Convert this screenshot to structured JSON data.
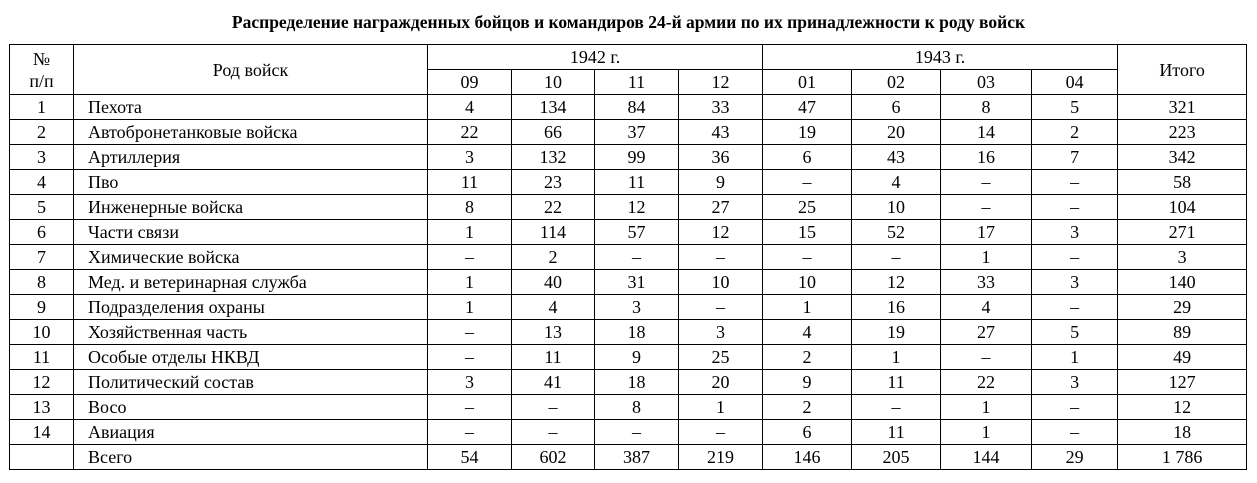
{
  "title": "Распределение награжденных бойцов и командиров 24-й армии по их принадлежности к роду войск",
  "header": {
    "num_line1": "№",
    "num_line2": "п/п",
    "branch": "Род войск",
    "year_1942": "1942 г.",
    "year_1943": "1943 г.",
    "months_1942": [
      "09",
      "10",
      "11",
      "12"
    ],
    "months_1943": [
      "01",
      "02",
      "03",
      "04"
    ],
    "total": "Итого"
  },
  "rows": [
    {
      "num": "1",
      "branch": "Пехота",
      "values": [
        "4",
        "134",
        "84",
        "33",
        "47",
        "6",
        "8",
        "5"
      ],
      "total": "321"
    },
    {
      "num": "2",
      "branch": "Автобронетанковые войска",
      "values": [
        "22",
        "66",
        "37",
        "43",
        "19",
        "20",
        "14",
        "2"
      ],
      "total": "223"
    },
    {
      "num": "3",
      "branch": "Артиллерия",
      "values": [
        "3",
        "132",
        "99",
        "36",
        "6",
        "43",
        "16",
        "7"
      ],
      "total": "342"
    },
    {
      "num": "4",
      "branch": "Пво",
      "values": [
        "11",
        "23",
        "11",
        "9",
        "–",
        "4",
        "–",
        "–"
      ],
      "total": "58"
    },
    {
      "num": "5",
      "branch": "Инженерные войска",
      "values": [
        "8",
        "22",
        "12",
        "27",
        "25",
        "10",
        "–",
        "–"
      ],
      "total": "104"
    },
    {
      "num": "6",
      "branch": "Части связи",
      "values": [
        "1",
        "114",
        "57",
        "12",
        "15",
        "52",
        "17",
        "3"
      ],
      "total": "271"
    },
    {
      "num": "7",
      "branch": "Химические войска",
      "values": [
        "–",
        "2",
        "–",
        "–",
        "–",
        "–",
        "1",
        "–"
      ],
      "total": "3"
    },
    {
      "num": "8",
      "branch": "Мед. и ветеринарная служба",
      "values": [
        "1",
        "40",
        "31",
        "10",
        "10",
        "12",
        "33",
        "3"
      ],
      "total": "140"
    },
    {
      "num": "9",
      "branch": "Подразделения охраны",
      "values": [
        "1",
        "4",
        "3",
        "–",
        "1",
        "16",
        "4",
        "–"
      ],
      "total": "29"
    },
    {
      "num": "10",
      "branch": "Хозяйственная часть",
      "values": [
        "–",
        "13",
        "18",
        "3",
        "4",
        "19",
        "27",
        "5"
      ],
      "total": "89"
    },
    {
      "num": "11",
      "branch": "Особые отделы НКВД",
      "values": [
        "–",
        "11",
        "9",
        "25",
        "2",
        "1",
        "–",
        "1"
      ],
      "total": "49"
    },
    {
      "num": "12",
      "branch": "Политический состав",
      "values": [
        "3",
        "41",
        "18",
        "20",
        "9",
        "11",
        "22",
        "3"
      ],
      "total": "127"
    },
    {
      "num": "13",
      "branch": "Восо",
      "values": [
        "–",
        "–",
        "8",
        "1",
        "2",
        "–",
        "1",
        "–"
      ],
      "total": "12"
    },
    {
      "num": "14",
      "branch": "Авиация",
      "values": [
        "–",
        "–",
        "–",
        "–",
        "6",
        "11",
        "1",
        "–"
      ],
      "total": "18"
    }
  ],
  "summary": {
    "num": "",
    "branch": "Всего",
    "values": [
      "54",
      "602",
      "387",
      "219",
      "146",
      "205",
      "144",
      "29"
    ],
    "total": "1 786"
  }
}
